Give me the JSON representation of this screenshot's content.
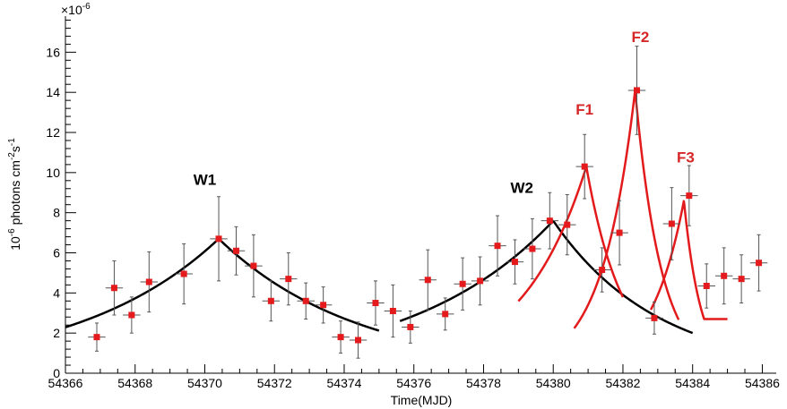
{
  "chart_data": {
    "type": "scatter",
    "title": "",
    "xlabel": "Time(MJD)",
    "ylabel_parts": [
      "10",
      "-6",
      " photons cm",
      "-2",
      "s",
      "-1"
    ],
    "y_multiplier": "×10",
    "y_multiplier_exp": "-6",
    "xlim": [
      54366,
      54386.4
    ],
    "ylim": [
      0,
      17.8
    ],
    "x_ticks": [
      54366,
      54368,
      54370,
      54372,
      54374,
      54376,
      54378,
      54380,
      54382,
      54384,
      54386
    ],
    "y_ticks": [
      0,
      2,
      4,
      6,
      8,
      10,
      12,
      14,
      16
    ],
    "grid": false,
    "colors": {
      "points": "#e41a1c",
      "wave_fit": "#000000",
      "flare_fit": "#e31a1c",
      "errors": "#555555"
    },
    "points": [
      {
        "x": 54366.9,
        "y": 1.8,
        "xerr": 0.25,
        "yerr": 0.7
      },
      {
        "x": 54367.4,
        "y": 4.25,
        "xerr": 0.25,
        "yerr": 1.35
      },
      {
        "x": 54367.9,
        "y": 2.9,
        "xerr": 0.25,
        "yerr": 0.9
      },
      {
        "x": 54368.4,
        "y": 4.55,
        "xerr": 0.25,
        "yerr": 1.5
      },
      {
        "x": 54369.4,
        "y": 4.95,
        "xerr": 0.25,
        "yerr": 1.5
      },
      {
        "x": 54370.4,
        "y": 6.7,
        "xerr": 0.25,
        "yerr": 2.1
      },
      {
        "x": 54370.9,
        "y": 6.1,
        "xerr": 0.25,
        "yerr": 1.2
      },
      {
        "x": 54371.4,
        "y": 5.35,
        "xerr": 0.25,
        "yerr": 1.55
      },
      {
        "x": 54371.9,
        "y": 3.6,
        "xerr": 0.25,
        "yerr": 1.0
      },
      {
        "x": 54372.4,
        "y": 4.7,
        "xerr": 0.25,
        "yerr": 1.3
      },
      {
        "x": 54372.9,
        "y": 3.6,
        "xerr": 0.25,
        "yerr": 0.9
      },
      {
        "x": 54373.4,
        "y": 3.4,
        "xerr": 0.25,
        "yerr": 0.9
      },
      {
        "x": 54373.9,
        "y": 1.8,
        "xerr": 0.25,
        "yerr": 0.8
      },
      {
        "x": 54374.4,
        "y": 1.65,
        "xerr": 0.25,
        "yerr": 0.9
      },
      {
        "x": 54374.9,
        "y": 3.5,
        "xerr": 0.25,
        "yerr": 1.1
      },
      {
        "x": 54375.4,
        "y": 3.1,
        "xerr": 0.25,
        "yerr": 1.3
      },
      {
        "x": 54375.9,
        "y": 2.3,
        "xerr": 0.25,
        "yerr": 0.8
      },
      {
        "x": 54376.4,
        "y": 4.65,
        "xerr": 0.25,
        "yerr": 1.5
      },
      {
        "x": 54376.9,
        "y": 2.95,
        "xerr": 0.25,
        "yerr": 0.8
      },
      {
        "x": 54377.4,
        "y": 4.45,
        "xerr": 0.25,
        "yerr": 1.3
      },
      {
        "x": 54377.9,
        "y": 4.6,
        "xerr": 0.25,
        "yerr": 1.2
      },
      {
        "x": 54378.4,
        "y": 6.35,
        "xerr": 0.25,
        "yerr": 1.5
      },
      {
        "x": 54378.9,
        "y": 5.55,
        "xerr": 0.25,
        "yerr": 1.1
      },
      {
        "x": 54379.4,
        "y": 6.2,
        "xerr": 0.25,
        "yerr": 1.5
      },
      {
        "x": 54379.9,
        "y": 7.6,
        "xerr": 0.25,
        "yerr": 1.4
      },
      {
        "x": 54380.4,
        "y": 7.4,
        "xerr": 0.25,
        "yerr": 1.5
      },
      {
        "x": 54380.9,
        "y": 10.3,
        "xerr": 0.25,
        "yerr": 1.6
      },
      {
        "x": 54381.4,
        "y": 5.15,
        "xerr": 0.25,
        "yerr": 1.1
      },
      {
        "x": 54381.9,
        "y": 7.0,
        "xerr": 0.25,
        "yerr": 1.6
      },
      {
        "x": 54382.4,
        "y": 14.1,
        "xerr": 0.25,
        "yerr": 2.2
      },
      {
        "x": 54382.9,
        "y": 2.75,
        "xerr": 0.25,
        "yerr": 0.8
      },
      {
        "x": 54383.4,
        "y": 7.45,
        "xerr": 0.25,
        "yerr": 1.8
      },
      {
        "x": 54383.9,
        "y": 8.85,
        "xerr": 0.25,
        "yerr": 1.5
      },
      {
        "x": 54384.4,
        "y": 4.35,
        "xerr": 0.25,
        "yerr": 1.1
      },
      {
        "x": 54384.9,
        "y": 4.85,
        "xerr": 0.25,
        "yerr": 1.4
      },
      {
        "x": 54385.4,
        "y": 4.7,
        "xerr": 0.25,
        "yerr": 1.2
      },
      {
        "x": 54385.9,
        "y": 5.5,
        "xerr": 0.25,
        "yerr": 1.4
      }
    ],
    "fits": [
      {
        "label": "W1",
        "color": "#000000",
        "x0": 54370.4,
        "peak": 6.7,
        "tau_rise": 4.1,
        "tau_decay": 4.0,
        "xmin": 54366.0,
        "xmax": 54375.0
      },
      {
        "label": "W2",
        "color": "#000000",
        "x0": 54380.0,
        "peak": 7.6,
        "tau_rise": 4.1,
        "tau_decay": 3.0,
        "xmin": 54375.6,
        "xmax": 54384.0
      },
      {
        "label": "F1",
        "color": "#e31a1c",
        "x0": 54380.95,
        "peak": 10.3,
        "tau_rise": 1.85,
        "tau_decay": 1.05,
        "xmin": 54379.0,
        "xmax": 54382.0
      },
      {
        "label": "F2",
        "color": "#e31a1c",
        "x0": 54382.35,
        "peak": 14.1,
        "tau_rise": 0.95,
        "tau_decay": 0.75,
        "xmin": 54380.6,
        "xmax": 54383.6
      },
      {
        "label": "F3",
        "color": "#e31a1c",
        "x0": 54383.75,
        "peak": 8.6,
        "tau_rise": 0.95,
        "tau_decay": 0.5,
        "xmin": 54382.8,
        "xmax": 54385.0,
        "floor": 2.7
      }
    ],
    "annotations": [
      {
        "text": "W1",
        "x": 54370.0,
        "y": 9.4,
        "color": "#000000"
      },
      {
        "text": "W2",
        "x": 54379.1,
        "y": 9.0,
        "color": "#000000"
      },
      {
        "text": "F1",
        "x": 54380.9,
        "y": 12.9,
        "color": "#d62728"
      },
      {
        "text": "F2",
        "x": 54382.5,
        "y": 16.5,
        "color": "#d62728"
      },
      {
        "text": "F3",
        "x": 54383.8,
        "y": 10.5,
        "color": "#d62728"
      }
    ]
  }
}
